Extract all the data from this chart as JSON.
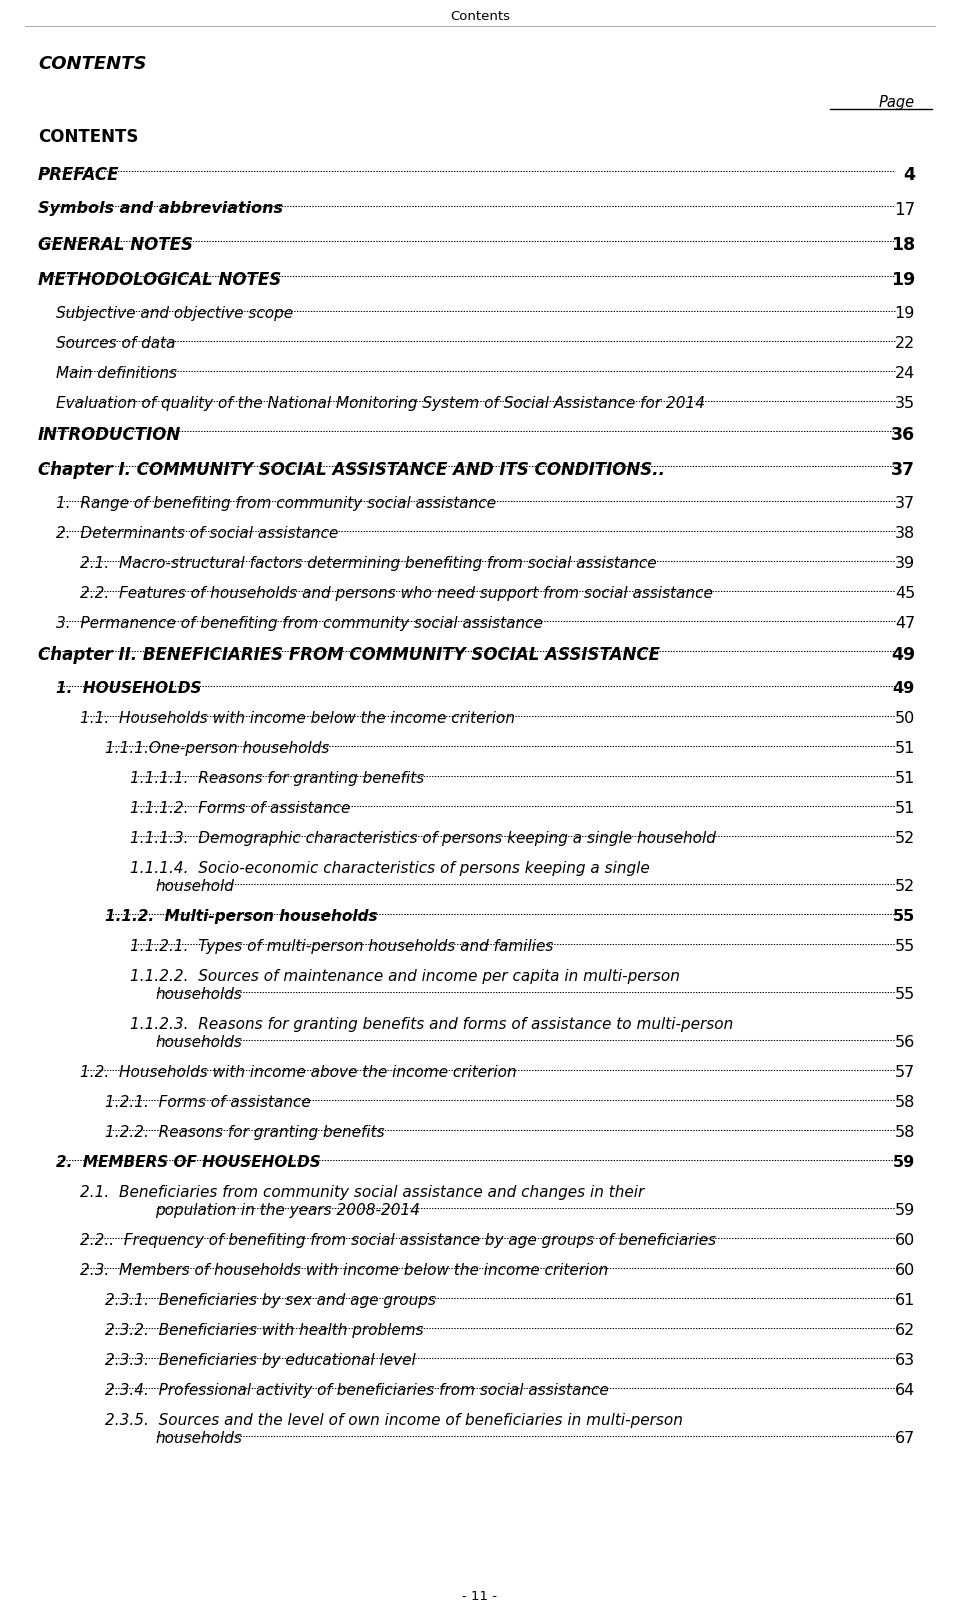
{
  "header": "Contents",
  "bg_color": "#ffffff",
  "text_color": "#000000",
  "footer": "- 11 -",
  "entries": [
    {
      "text": "CONTENTS",
      "page": null,
      "indent": 0,
      "style": "bold",
      "size": 12,
      "lh": 38,
      "dots": false
    },
    {
      "text": "PREFACE",
      "page": "4",
      "indent": 0,
      "style": "bold_italic",
      "size": 12,
      "lh": 35,
      "dots": true,
      "page_bold": true
    },
    {
      "text": "Symbols and abbreviations",
      "page": "17",
      "indent": 0,
      "style": "bold_italic",
      "size": 11.5,
      "lh": 35,
      "dots": true,
      "page_bold": false
    },
    {
      "text": "GENERAL NOTES",
      "page": "18",
      "indent": 0,
      "style": "bold_italic",
      "size": 12,
      "lh": 35,
      "dots": true,
      "page_bold": true
    },
    {
      "text": "METHODOLOGICAL NOTES",
      "page": "19",
      "indent": 0,
      "style": "bold_italic",
      "size": 12,
      "lh": 35,
      "dots": true,
      "page_bold": true
    },
    {
      "text": "Subjective and objective scope",
      "page": "19",
      "indent": 1,
      "style": "italic",
      "size": 11,
      "lh": 30,
      "dots": true,
      "page_bold": false
    },
    {
      "text": "Sources of data",
      "page": "22",
      "indent": 1,
      "style": "italic",
      "size": 11,
      "lh": 30,
      "dots": true,
      "page_bold": false
    },
    {
      "text": "Main definitions",
      "page": "24",
      "indent": 1,
      "style": "italic",
      "size": 11,
      "lh": 30,
      "dots": true,
      "page_bold": false
    },
    {
      "text": "Evaluation of quality of the National Monitoring System of Social Assistance for 2014",
      "page": "35",
      "indent": 1,
      "style": "italic",
      "size": 11,
      "lh": 30,
      "dots": true,
      "page_bold": false
    },
    {
      "text": "INTRODUCTION",
      "page": "36",
      "indent": 0,
      "style": "bold_italic",
      "size": 12,
      "lh": 35,
      "dots": true,
      "page_bold": true
    },
    {
      "text": "Chapter I. COMMUNITY SOCIAL ASSISTANCE AND ITS CONDITIONS..",
      "page": "37",
      "indent": 0,
      "style": "bold_italic",
      "size": 12,
      "lh": 35,
      "dots": true,
      "page_bold": true
    },
    {
      "text": "1.  Range of benefiting from community social assistance",
      "page": "37",
      "indent": 1,
      "style": "italic",
      "size": 11,
      "lh": 30,
      "dots": true,
      "page_bold": false
    },
    {
      "text": "2.  Determinants of social assistance",
      "page": "38",
      "indent": 1,
      "style": "italic",
      "size": 11,
      "lh": 30,
      "dots": true,
      "page_bold": false
    },
    {
      "text": "2.1.  Macro-structural factors determining benefiting from social assistance",
      "page": "39",
      "indent": 2,
      "style": "italic",
      "size": 11,
      "lh": 30,
      "dots": true,
      "page_bold": false
    },
    {
      "text": "2.2.  Features of households and persons who need support from social assistance",
      "page": "45",
      "indent": 2,
      "style": "italic",
      "size": 11,
      "lh": 30,
      "dots": true,
      "page_bold": false
    },
    {
      "text": "3.  Permanence of benefiting from community social assistance",
      "page": "47",
      "indent": 1,
      "style": "italic",
      "size": 11,
      "lh": 30,
      "dots": true,
      "page_bold": false
    },
    {
      "text": "Chapter II. BENEFICIARIES FROM COMMUNITY SOCIAL ASSISTANCE",
      "page": "49",
      "indent": 0,
      "style": "bold_italic",
      "size": 12,
      "lh": 35,
      "dots": true,
      "page_bold": true
    },
    {
      "text": "1.  HOUSEHOLDS",
      "page": "49",
      "indent": 1,
      "style": "bold_italic",
      "size": 11,
      "lh": 30,
      "dots": true,
      "page_bold": true
    },
    {
      "text": "1.1.  Households with income below the income criterion",
      "page": "50",
      "indent": 2,
      "style": "italic",
      "size": 11,
      "lh": 30,
      "dots": true,
      "page_bold": false
    },
    {
      "text": "1.1.1.One-person households",
      "page": "51",
      "indent": 3,
      "style": "italic",
      "size": 11,
      "lh": 30,
      "dots": true,
      "page_bold": false
    },
    {
      "text": "1.1.1.1.  Reasons for granting benefits",
      "page": "51",
      "indent": 4,
      "style": "italic",
      "size": 11,
      "lh": 30,
      "dots": true,
      "page_bold": false
    },
    {
      "text": "1.1.1.2.  Forms of assistance",
      "page": "51",
      "indent": 4,
      "style": "italic",
      "size": 11,
      "lh": 30,
      "dots": true,
      "page_bold": false
    },
    {
      "text": "1.1.1.3.  Demographic characteristics of persons keeping a single household",
      "page": "52",
      "indent": 4,
      "style": "italic",
      "size": 11,
      "lh": 30,
      "dots": true,
      "page_bold": false
    },
    {
      "text": "1.1.1.4.  Socio-economic characteristics of persons keeping a single",
      "page": null,
      "indent": 4,
      "style": "italic",
      "size": 11,
      "lh": 18,
      "dots": false,
      "page_bold": false
    },
    {
      "text": "household",
      "page": "52",
      "indent": 5,
      "style": "italic",
      "size": 11,
      "lh": 30,
      "dots": true,
      "page_bold": false
    },
    {
      "text": "1.1.2.  Multi-person households",
      "page": "55",
      "indent": 3,
      "style": "bold_italic",
      "size": 11,
      "lh": 30,
      "dots": true,
      "page_bold": true
    },
    {
      "text": "1.1.2.1.  Types of multi-person households and families",
      "page": "55",
      "indent": 4,
      "style": "italic",
      "size": 11,
      "lh": 30,
      "dots": true,
      "page_bold": false
    },
    {
      "text": "1.1.2.2.  Sources of maintenance and income per capita in multi-person",
      "page": null,
      "indent": 4,
      "style": "italic",
      "size": 11,
      "lh": 18,
      "dots": false,
      "page_bold": false
    },
    {
      "text": "households",
      "page": "55",
      "indent": 5,
      "style": "italic",
      "size": 11,
      "lh": 30,
      "dots": true,
      "page_bold": false
    },
    {
      "text": "1.1.2.3.  Reasons for granting benefits and forms of assistance to multi-person",
      "page": null,
      "indent": 4,
      "style": "italic",
      "size": 11,
      "lh": 18,
      "dots": false,
      "page_bold": false
    },
    {
      "text": "households",
      "page": "56",
      "indent": 5,
      "style": "italic",
      "size": 11,
      "lh": 30,
      "dots": true,
      "page_bold": false
    },
    {
      "text": "1.2.  Households with income above the income criterion",
      "page": "57",
      "indent": 2,
      "style": "italic",
      "size": 11,
      "lh": 30,
      "dots": true,
      "page_bold": false
    },
    {
      "text": "1.2.1.  Forms of assistance",
      "page": "58",
      "indent": 3,
      "style": "italic",
      "size": 11,
      "lh": 30,
      "dots": true,
      "page_bold": false
    },
    {
      "text": "1.2.2.  Reasons for granting benefits",
      "page": "58",
      "indent": 3,
      "style": "italic",
      "size": 11,
      "lh": 30,
      "dots": true,
      "page_bold": false
    },
    {
      "text": "2.  MEMBERS OF HOUSEHOLDS",
      "page": "59",
      "indent": 1,
      "style": "bold_italic",
      "size": 11,
      "lh": 30,
      "dots": true,
      "page_bold": true
    },
    {
      "text": "2.1.  Beneficiaries from community social assistance and changes in their",
      "page": null,
      "indent": 2,
      "style": "italic",
      "size": 11,
      "lh": 18,
      "dots": false,
      "page_bold": false
    },
    {
      "text": "population in the years 2008-2014",
      "page": "59",
      "indent": 5,
      "style": "italic",
      "size": 11,
      "lh": 30,
      "dots": true,
      "page_bold": false
    },
    {
      "text": "2.2..  Frequency of benefiting from social assistance by age groups of beneficiaries",
      "page": "60",
      "indent": 2,
      "style": "italic",
      "size": 11,
      "lh": 30,
      "dots": true,
      "page_bold": false
    },
    {
      "text": "2.3.  Members of households with income below the income criterion",
      "page": "60",
      "indent": 2,
      "style": "italic",
      "size": 11,
      "lh": 30,
      "dots": true,
      "page_bold": false
    },
    {
      "text": "2.3.1.  Beneficiaries by sex and age groups",
      "page": "61",
      "indent": 3,
      "style": "italic",
      "size": 11,
      "lh": 30,
      "dots": true,
      "page_bold": false
    },
    {
      "text": "2.3.2.  Beneficiaries with health problems",
      "page": "62",
      "indent": 3,
      "style": "italic",
      "size": 11,
      "lh": 30,
      "dots": true,
      "page_bold": false
    },
    {
      "text": "2.3.3.  Beneficiaries by educational level",
      "page": "63",
      "indent": 3,
      "style": "italic",
      "size": 11,
      "lh": 30,
      "dots": true,
      "page_bold": false
    },
    {
      "text": "2.3.4.  Professional activity of beneficiaries from social assistance",
      "page": "64",
      "indent": 3,
      "style": "italic",
      "size": 11,
      "lh": 30,
      "dots": true,
      "page_bold": false
    },
    {
      "text": "2.3.5.  Sources and the level of own income of beneficiaries in multi-person",
      "page": null,
      "indent": 3,
      "style": "italic",
      "size": 11,
      "lh": 18,
      "dots": false,
      "page_bold": false
    },
    {
      "text": "households",
      "page": "67",
      "indent": 5,
      "style": "italic",
      "size": 11,
      "lh": 30,
      "dots": true,
      "page_bold": false
    }
  ]
}
